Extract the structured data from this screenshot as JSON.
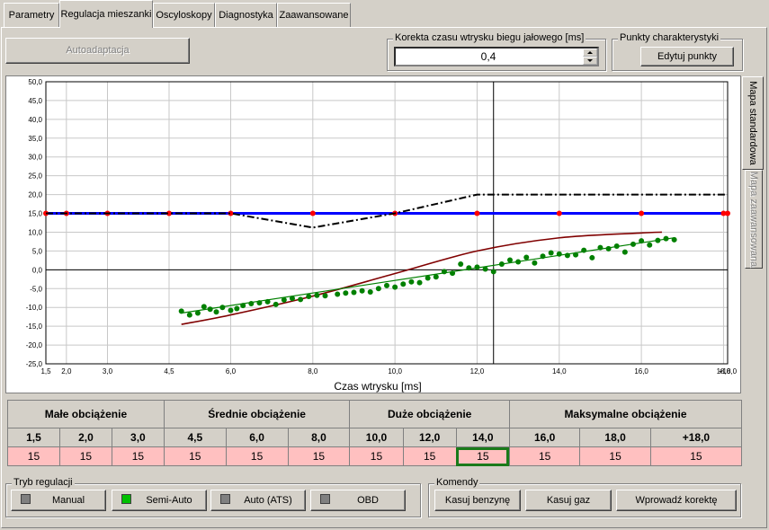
{
  "tabs": [
    "Parametry",
    "Regulacja mieszanki",
    "Oscyloskopy",
    "Diagnostyka",
    "Zaawansowane"
  ],
  "toolbar": {
    "autoadapt_label": "Autoadaptacja",
    "idle_group_title": "Korekta czasu wtrysku biegu jałowego [ms]",
    "idle_value": "0,4",
    "points_group_title": "Punkty charakterystyki",
    "edit_points_label": "Edytuj punkty"
  },
  "side_tabs": [
    "Mapa standardowa",
    "Mapa zaawansowana"
  ],
  "chart_data": {
    "type": "line",
    "xlabel": "Czas wtrysku [ms]",
    "ylabel": "",
    "xlim": [
      1.5,
      18.1
    ],
    "ylim": [
      -25,
      50
    ],
    "grid": true,
    "x_ticks": [
      "1,5",
      "2,0",
      "3,0",
      "4,5",
      "6,0",
      "8,0",
      "10,0",
      "12,0",
      "14,0",
      "16,0",
      "18,0",
      "+18,0"
    ],
    "x_tick_values": [
      1.5,
      2.0,
      3.0,
      4.5,
      6.0,
      8.0,
      10.0,
      12.0,
      14.0,
      16.0,
      18.0,
      18.1
    ],
    "y_ticks": [
      "50,0",
      "45,0",
      "40,0",
      "35,0",
      "30,0",
      "25,0",
      "20,0",
      "15,0",
      "10,0",
      "5,0",
      "0,0",
      "-5,0",
      "-10,0",
      "-15,0",
      "-20,0",
      "-25,0"
    ],
    "y_tick_values": [
      50,
      45,
      40,
      35,
      30,
      25,
      20,
      15,
      10,
      5,
      0,
      -5,
      -10,
      -15,
      -20,
      -25
    ],
    "cursor_x": 12.4,
    "series": [
      {
        "style": "blue-map",
        "color": "#0000ff",
        "markers": "#ff0000",
        "x": [
          1.5,
          2.0,
          3.0,
          4.5,
          6.0,
          8.0,
          10.0,
          12.0,
          14.0,
          16.0,
          18.0,
          18.1
        ],
        "y": [
          15,
          15,
          15,
          15,
          15,
          15,
          15,
          15,
          15,
          15,
          15,
          15
        ]
      },
      {
        "style": "dash-dot",
        "color": "#000000",
        "x": [
          1.5,
          6.0,
          8.0,
          10.0,
          12.0,
          18.1
        ],
        "y": [
          15,
          15,
          11.2,
          15,
          20,
          20
        ]
      },
      {
        "style": "trend",
        "color": "#800000",
        "x": [
          4.8,
          6.0,
          8.0,
          10.0,
          12.0,
          14.0,
          16.0,
          16.5
        ],
        "y": [
          -14.5,
          -12.0,
          -7.0,
          -1.0,
          5.0,
          8.5,
          9.8,
          10.0
        ]
      },
      {
        "style": "fit",
        "color": "#008000",
        "x": [
          4.8,
          16.8
        ],
        "y": [
          -11.5,
          8.5
        ]
      }
    ],
    "scatter": {
      "color": "#008000",
      "x": [
        4.8,
        5.0,
        5.2,
        5.35,
        5.5,
        5.65,
        5.8,
        6.0,
        6.15,
        6.3,
        6.5,
        6.7,
        6.9,
        7.1,
        7.3,
        7.5,
        7.7,
        7.9,
        8.1,
        8.3,
        8.6,
        8.8,
        9.0,
        9.2,
        9.4,
        9.6,
        9.8,
        10.0,
        10.2,
        10.4,
        10.6,
        10.8,
        11.0,
        11.2,
        11.4,
        11.6,
        11.8,
        12.0,
        12.2,
        12.4,
        12.6,
        12.8,
        13.0,
        13.2,
        13.4,
        13.6,
        13.8,
        14.0,
        14.2,
        14.4,
        14.6,
        14.8,
        15.0,
        15.2,
        15.4,
        15.6,
        15.8,
        16.0,
        16.2,
        16.4,
        16.6,
        16.8
      ],
      "y": [
        -11.0,
        -12.0,
        -11.5,
        -9.8,
        -10.5,
        -11.2,
        -10.0,
        -10.8,
        -10.3,
        -9.5,
        -9.0,
        -8.8,
        -8.5,
        -9.2,
        -8.0,
        -7.6,
        -7.9,
        -7.1,
        -6.8,
        -6.9,
        -6.5,
        -6.2,
        -6.0,
        -5.6,
        -5.9,
        -5.0,
        -4.2,
        -4.6,
        -3.8,
        -3.2,
        -3.4,
        -2.2,
        -1.9,
        -0.5,
        -0.9,
        1.5,
        0.5,
        0.7,
        0.2,
        -0.5,
        1.5,
        2.6,
        2.1,
        3.3,
        1.8,
        3.6,
        4.5,
        4.2,
        3.8,
        4.0,
        5.2,
        3.2,
        5.9,
        5.6,
        6.3,
        4.7,
        6.8,
        7.7,
        6.6,
        7.8,
        8.3,
        8.0
      ]
    }
  },
  "load_headers": [
    "Małe obciążenie",
    "Średnie obciążenie",
    "Duże obciążenie",
    "Maksymalne obciążenie"
  ],
  "columns": [
    "1,5",
    "2,0",
    "3,0",
    "4,5",
    "6,0",
    "8,0",
    "10,0",
    "12,0",
    "14,0",
    "16,0",
    "18,0",
    "+18,0"
  ],
  "values": [
    "15",
    "15",
    "15",
    "15",
    "15",
    "15",
    "15",
    "15",
    "15",
    "15",
    "15",
    "15"
  ],
  "selected_cell_index": 8,
  "mode": {
    "title": "Tryb regulacji",
    "buttons": [
      {
        "label": "Manual",
        "active": false
      },
      {
        "label": "Semi-Auto",
        "active": true
      },
      {
        "label": "Auto (ATS)",
        "active": false
      },
      {
        "label": "OBD",
        "active": false
      }
    ]
  },
  "commands": {
    "title": "Komendy",
    "buttons": [
      "Kasuj benzynę",
      "Kasuj gaz",
      "Wprowadź korektę"
    ]
  },
  "colors": {
    "cell_bg": "#ffc0c0",
    "selected_border": "#1a7a1a",
    "led_active": "#00c000",
    "led_inactive": "#808080"
  }
}
